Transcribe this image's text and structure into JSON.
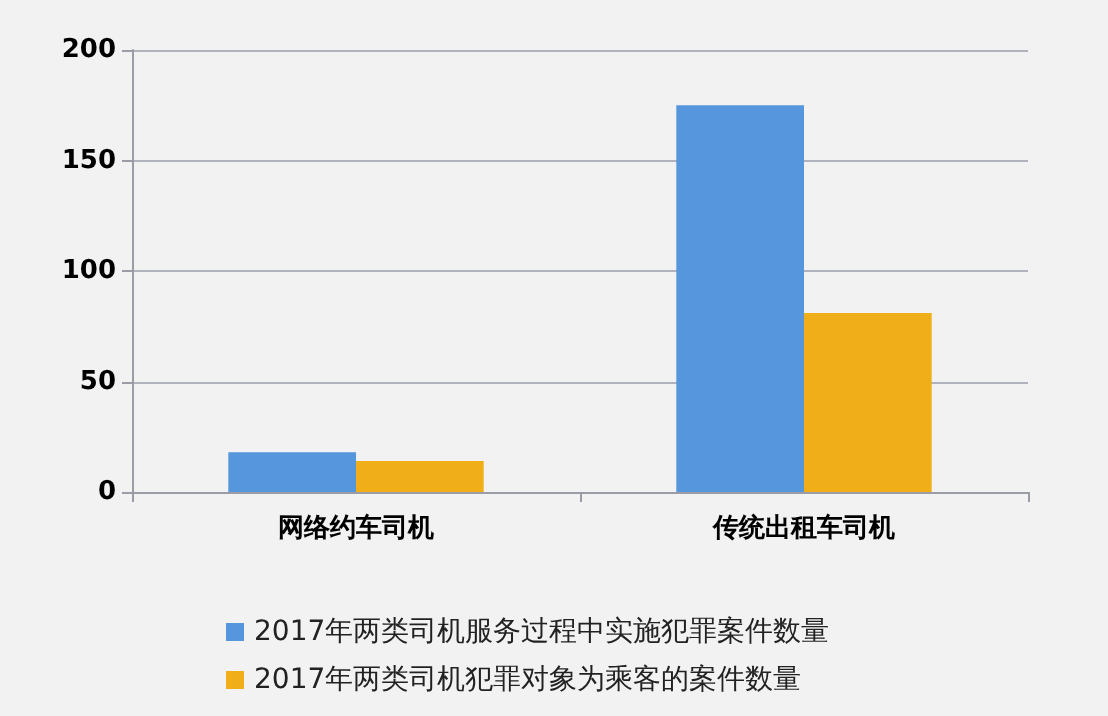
{
  "chart_data": {
    "type": "bar",
    "categories": [
      "网络约车司机",
      "传统出租车司机"
    ],
    "series": [
      {
        "name": "2017年两类司机服务过程中实施犯罪案件数量",
        "color": "#5596dc",
        "values": [
          18,
          175
        ]
      },
      {
        "name": "2017年两类司机犯罪对象为乘客的案件数量",
        "color": "#f0ae18",
        "values": [
          14,
          81
        ]
      }
    ],
    "ylim": [
      0,
      200
    ],
    "yticks": [
      0,
      50,
      100,
      150,
      200
    ],
    "grid": "y",
    "legend": "bottom"
  }
}
